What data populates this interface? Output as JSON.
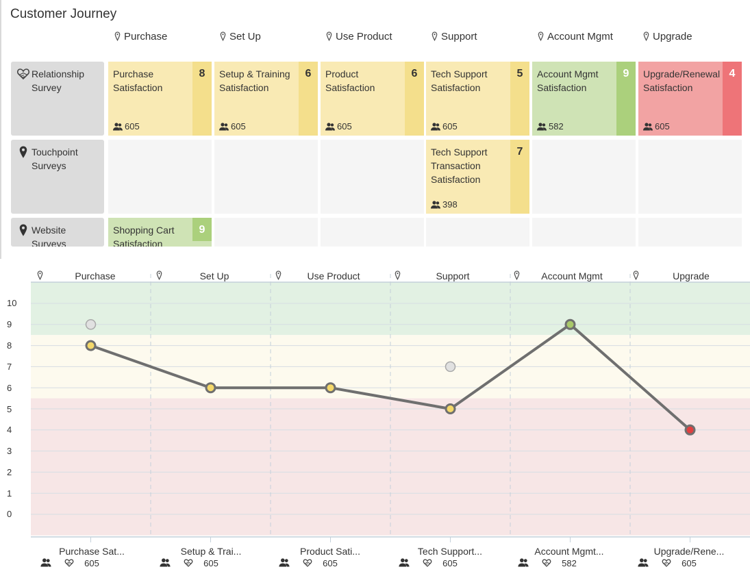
{
  "title": "Customer Journey",
  "stages": [
    "Purchase",
    "Set Up",
    "Use Product",
    "Support",
    "Account Mgmt",
    "Upgrade"
  ],
  "rows": [
    {
      "label": "Relationship Survey",
      "icon": "heart-hand-icon"
    },
    {
      "label": "Touchpoint Surveys",
      "icon": "map-pin-icon"
    },
    {
      "label": "Website Surveys",
      "icon": "map-pin-icon"
    }
  ],
  "cards": {
    "r0c0": {
      "label": "Purchase Satisfaction",
      "score": "8",
      "count": "605",
      "status": "yellow"
    },
    "r0c1": {
      "label": "Setup & Training Satisfaction",
      "score": "6",
      "count": "605",
      "status": "yellow"
    },
    "r0c2": {
      "label": "Product Satisfaction",
      "score": "6",
      "count": "605",
      "status": "yellow"
    },
    "r0c3": {
      "label": "Tech Support Satisfaction",
      "score": "5",
      "count": "605",
      "status": "yellow"
    },
    "r0c4": {
      "label": "Account Mgmt Satisfaction",
      "score": "9",
      "count": "582",
      "status": "green"
    },
    "r0c5": {
      "label": "Upgrade/Renewal Satisfaction",
      "score": "4",
      "count": "605",
      "status": "red"
    },
    "r1c3": {
      "label": "Tech Support Transaction Satisfaction",
      "score": "7",
      "count": "398",
      "status": "yellow"
    },
    "r2c0": {
      "label": "Shopping Cart Satisfaction",
      "score": "9",
      "count": "",
      "status": "green"
    }
  },
  "colors": {
    "yellow": "#f9eab4",
    "yellow_score": "#f4df8c",
    "green": "#cfe3b5",
    "green_score": "#abd07c",
    "red": "#f2a3a3",
    "red_score": "#ee7478",
    "band_green": "#e2f1e3",
    "band_yellow": "#fdfaee",
    "band_red": "#f7e6e6",
    "line": "#6f6f6f"
  },
  "chart": {
    "x_labels": [
      "Purchase Sat...",
      "Setup & Trai...",
      "Product Sati...",
      "Tech Support...",
      "Account Mgmt...",
      "Upgrade/Rene..."
    ],
    "x_counts": [
      "605",
      "605",
      "605",
      "605",
      "582",
      "605"
    ],
    "y_ticks": [
      "10",
      "9",
      "8",
      "7",
      "6",
      "5",
      "4",
      "3",
      "2",
      "1",
      "0"
    ]
  },
  "chart_data": {
    "type": "line",
    "categories": [
      "Purchase Sat...",
      "Setup & Trai...",
      "Product Sati...",
      "Tech Support...",
      "Account Mgmt...",
      "Upgrade/Rene..."
    ],
    "stages": [
      "Purchase",
      "Set Up",
      "Use Product",
      "Support",
      "Account Mgmt",
      "Upgrade"
    ],
    "series": [
      {
        "values": [
          8,
          6,
          6,
          5,
          9,
          4
        ],
        "point_status": [
          "yellow",
          "yellow",
          "yellow",
          "yellow",
          "green",
          "red"
        ]
      }
    ],
    "touchpoints": [
      {
        "category": "Purchase Sat...",
        "value": 9
      },
      {
        "category": "Tech Support...",
        "value": 7
      }
    ],
    "ylim": [
      -1,
      11
    ],
    "bands": [
      {
        "from": 8.5,
        "to": 11,
        "color": "green"
      },
      {
        "from": 5.5,
        "to": 8.5,
        "color": "yellow"
      },
      {
        "from": -1,
        "to": 5.5,
        "color": "red"
      }
    ],
    "grid": true
  }
}
